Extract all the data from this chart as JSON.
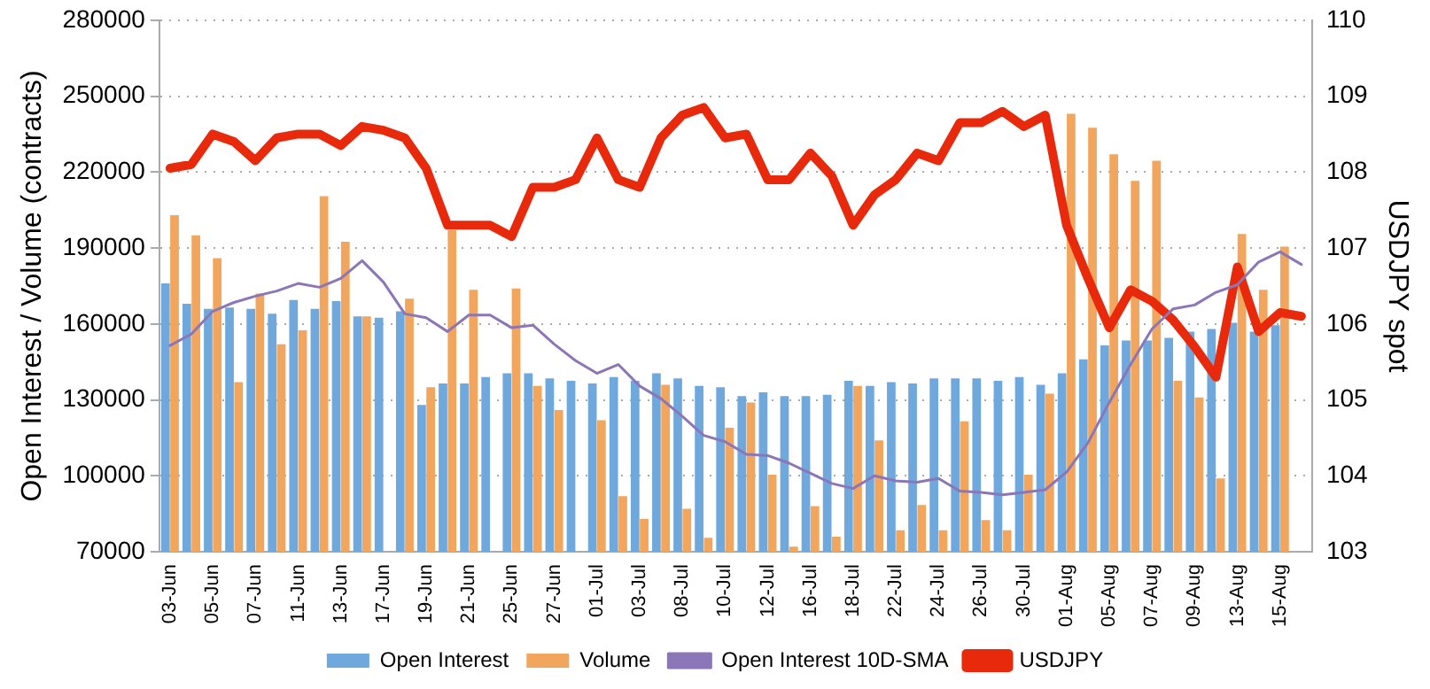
{
  "chart_data": {
    "type": "bar",
    "ylabel": "Open Interest / Volume (contracts)",
    "y2label": "USDJPY spot",
    "categories": [
      "03-Jun",
      null,
      "05-Jun",
      null,
      "07-Jun",
      null,
      "11-Jun",
      null,
      "13-Jun",
      null,
      "17-Jun",
      null,
      "19-Jun",
      null,
      "21-Jun",
      null,
      "25-Jun",
      null,
      "27-Jun",
      null,
      "01-Jul",
      null,
      "03-Jul",
      null,
      "08-Jul",
      null,
      "10-Jul",
      null,
      "12-Jul",
      null,
      "16-Jul",
      null,
      "18-Jul",
      null,
      "22-Jul",
      null,
      "24-Jul",
      null,
      "26-Jul",
      null,
      "30-Jul",
      null,
      "01-Aug",
      null,
      "05-Aug",
      null,
      "07-Aug",
      null,
      "09-Aug",
      null,
      "13-Aug",
      null,
      "15-Aug",
      null
    ],
    "series": [
      {
        "name": "Open Interest",
        "color": "#6fa8dc",
        "values": [
          176000,
          168000,
          166000,
          166500,
          166000,
          164000,
          169500,
          166000,
          169000,
          163000,
          162500,
          165000,
          128000,
          136500,
          136500,
          139000,
          140500,
          140500,
          138500,
          137500,
          136500,
          139000,
          137500,
          140500,
          138500,
          135500,
          135000,
          131500,
          133000,
          131500,
          131500,
          132000,
          137500,
          135500,
          137000,
          136500,
          138500,
          138500,
          138500,
          137500,
          139000,
          136000,
          140500,
          146000,
          151500,
          153500,
          153500,
          154500,
          157000,
          158000,
          160500,
          157000,
          159500,
          null
        ]
      },
      {
        "name": "Volume",
        "color": "#f2a55c",
        "values": [
          203000,
          195000,
          186000,
          137000,
          172000,
          152000,
          157500,
          210500,
          192500,
          163000,
          null,
          170000,
          135000,
          197000,
          173500,
          null,
          174000,
          135500,
          126000,
          null,
          122000,
          92000,
          83000,
          136000,
          87000,
          75500,
          119000,
          129000,
          100500,
          72000,
          88000,
          76000,
          135500,
          114000,
          78500,
          88500,
          78500,
          121500,
          82500,
          78500,
          100500,
          132500,
          243000,
          237500,
          227000,
          216500,
          224500,
          137500,
          131000,
          99000,
          195500,
          173500,
          190500,
          null
        ]
      },
      {
        "name": "Open Interest 10D-SMA",
        "type": "line",
        "color": "#8b76b8",
        "values": [
          151500,
          156000,
          165000,
          168500,
          171000,
          173000,
          176000,
          174500,
          178000,
          185000,
          176500,
          164000,
          162500,
          157000,
          163500,
          163500,
          158500,
          159500,
          152000,
          145500,
          140500,
          144000,
          135500,
          130500,
          123500,
          116000,
          113500,
          108500,
          108000,
          105000,
          101000,
          97000,
          95000,
          100000,
          98000,
          97500,
          99000,
          94000,
          93500,
          92500,
          93500,
          94500,
          101500,
          113000,
          129000,
          144000,
          158000,
          166000,
          167500,
          172500,
          175500,
          184500,
          188500,
          183500
        ]
      },
      {
        "name": "USDJPY",
        "type": "line",
        "axis": "y2",
        "color": "#e8290b",
        "values": [
          108.05,
          108.1,
          108.5,
          108.4,
          108.15,
          108.45,
          108.5,
          108.5,
          108.35,
          108.6,
          108.55,
          108.45,
          108.05,
          107.3,
          107.3,
          107.3,
          107.15,
          107.8,
          107.8,
          107.9,
          108.45,
          107.9,
          107.8,
          108.45,
          108.75,
          108.85,
          108.45,
          108.5,
          107.9,
          107.9,
          108.25,
          107.95,
          107.3,
          107.7,
          107.9,
          108.25,
          108.15,
          108.65,
          108.65,
          108.8,
          108.6,
          108.75,
          107.3,
          106.6,
          105.95,
          106.45,
          106.3,
          106.05,
          105.7,
          105.3,
          106.75,
          105.9,
          106.15,
          106.1
        ]
      }
    ],
    "ylim": [
      70000,
      280000
    ],
    "yticks": [
      70000,
      100000,
      130000,
      160000,
      190000,
      220000,
      250000,
      280000
    ],
    "y2lim": [
      103,
      110
    ],
    "y2ticks": [
      103,
      104,
      105,
      106,
      107,
      108,
      109,
      110
    ],
    "grid": "y",
    "legend": "bottom",
    "marker": "none",
    "line_style": "solid"
  }
}
